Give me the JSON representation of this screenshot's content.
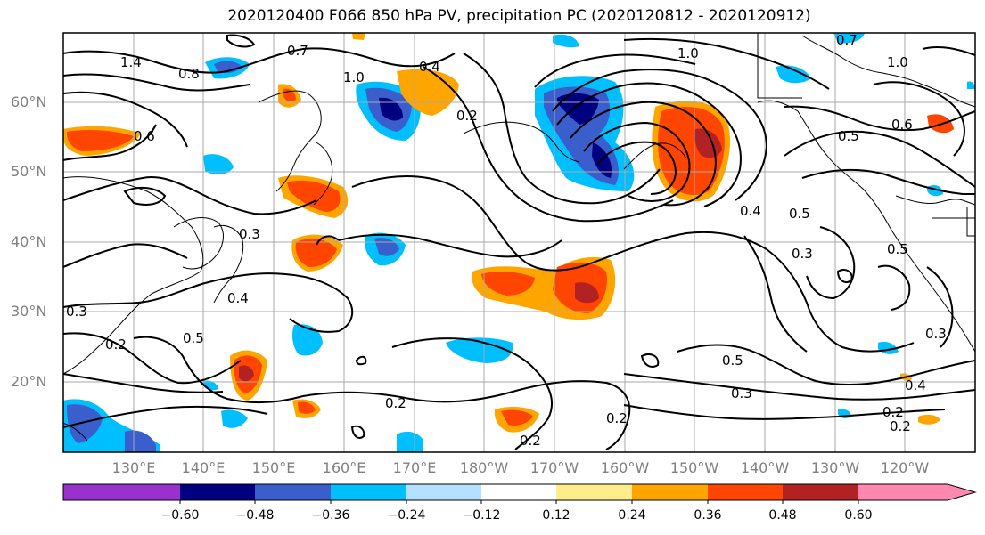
{
  "title": "2020120400 F066 850 hPa PV, precipitation PC (2020120812 - 2020120912)",
  "latitude_labels": [
    "60°N",
    "50°N",
    "40°N",
    "30°N",
    "20°N"
  ],
  "longitude_labels": [
    "130°E",
    "140°E",
    "150°E",
    "160°E",
    "170°E",
    "180°W",
    "170°W",
    "160°W",
    "150°W",
    "140°W",
    "130°W",
    "120°W"
  ],
  "colorbar": {
    "ticks": [
      "−0.60",
      "−0.48",
      "−0.36",
      "−0.24",
      "−0.12",
      "0.12",
      "0.24",
      "0.36",
      "0.48",
      "0.60"
    ],
    "colors": [
      "#9932cc",
      "#000080",
      "#3a5fcd",
      "#00bfff",
      "#b3e1ff",
      "#ffffff",
      "#ffec8b",
      "#ffa500",
      "#ff4500",
      "#b22222",
      "#ff88b0"
    ]
  },
  "contour_labels": [
    "1.4",
    "0.7",
    "0.8",
    "1.0",
    "0.7",
    "1.0",
    "1.0",
    "0.4",
    "0.2",
    "0.6",
    "0.5",
    "0.3",
    "0.4",
    "0.5",
    "0.2",
    "0.3",
    "0.5",
    "0.3",
    "0.2",
    "0.2",
    "0.4",
    "0.2",
    "0.2",
    "0.5",
    "0.3",
    "0.6",
    "0.5",
    "0.4",
    "0.2",
    "0.3"
  ]
}
